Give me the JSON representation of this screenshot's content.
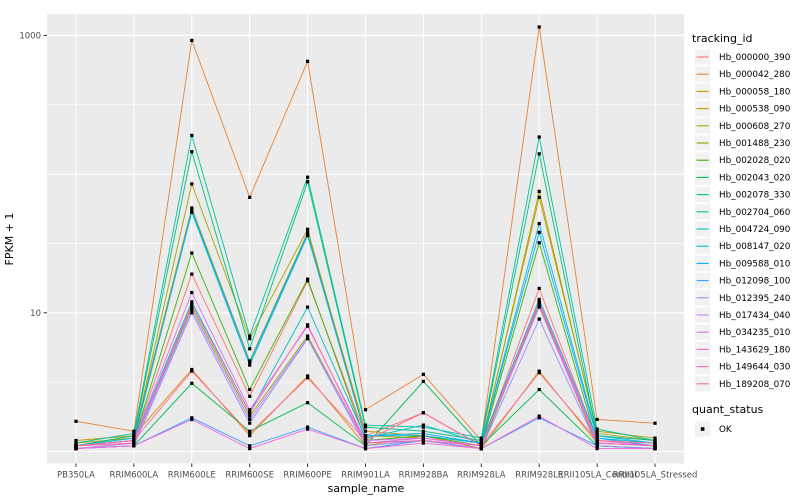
{
  "chart_data": {
    "type": "line",
    "title": "",
    "xlabel": "sample_name",
    "ylabel": "FPKM + 1",
    "y_scale": "log10",
    "y_tick_labels": [
      "1000",
      "10"
    ],
    "y_tick_values": [
      1000,
      10
    ],
    "y_gridlines_major": [
      1,
      10,
      100,
      1000
    ],
    "y_gridlines_minor": [
      3.162,
      31.62,
      316.2
    ],
    "ylim": [
      0.82,
      1400
    ],
    "grid": true,
    "panel_bg": "#EBEBEB",
    "grid_color": "#FFFFFF",
    "point_color": "#000000",
    "axis_text_color": "#4D4D4D",
    "tick_color": "#333333",
    "legend_key_bg": "#F2F2F2",
    "legend_position": "right",
    "categories": [
      "PB350LA",
      "RRIM600LA",
      "RRIM600LE",
      "RRIM600SE",
      "RRIM600PE",
      "RRIM901LA",
      "RRIM928BA",
      "RRIM928LA",
      "RRIM928LE",
      "RRII105LA_Control",
      "RRII105LA_Stressed"
    ],
    "series": [
      {
        "name": "Hb_000000_390",
        "color": "#F8766D",
        "values": [
          1.1,
          1.2,
          19,
          2.5,
          17,
          1.3,
          1.9,
          1.1,
          15,
          1.2,
          1.1
        ]
      },
      {
        "name": "Hb_000042_280",
        "color": "#EA8331",
        "values": [
          1.65,
          1.4,
          920,
          68,
          650,
          2.0,
          3.6,
          1.2,
          1150,
          1.7,
          1.6
        ]
      },
      {
        "name": "Hb_000058_180",
        "color": "#D89000",
        "values": [
          1.1,
          1.3,
          3.9,
          1.3,
          3.5,
          1.1,
          1.3,
          1.05,
          3.8,
          1.15,
          1.1
        ]
      },
      {
        "name": "Hb_000538_090",
        "color": "#C09B00",
        "values": [
          1.2,
          1.3,
          57,
          4.5,
          38,
          1.4,
          1.3,
          1.15,
          68,
          1.4,
          1.25
        ]
      },
      {
        "name": "Hb_000608_270",
        "color": "#A3A500",
        "values": [
          1.15,
          1.25,
          85,
          6.5,
          40,
          1.3,
          1.25,
          1.1,
          75,
          1.35,
          1.2
        ]
      },
      {
        "name": "Hb_001488_230",
        "color": "#7CAE00",
        "values": [
          1.05,
          1.15,
          11,
          1.8,
          6.8,
          1.15,
          1.2,
          1.05,
          11.5,
          1.1,
          1.05
        ]
      },
      {
        "name": "Hb_002028_020",
        "color": "#39B600",
        "values": [
          1.1,
          1.2,
          27,
          2.8,
          17.5,
          1.2,
          1.3,
          1.1,
          32,
          1.15,
          1.1
        ]
      },
      {
        "name": "Hb_002043_020",
        "color": "#00BB4E",
        "values": [
          1.05,
          1.1,
          3.1,
          1.4,
          2.25,
          1.1,
          3.2,
          1.1,
          2.8,
          1.1,
          1.05
        ]
      },
      {
        "name": "Hb_002078_330",
        "color": "#00BF7D",
        "values": [
          1.1,
          1.3,
          145,
          5.5,
          88,
          1.5,
          1.4,
          1.2,
          140,
          1.3,
          1.2
        ]
      },
      {
        "name": "Hb_002704_060",
        "color": "#00C1A3",
        "values": [
          1.15,
          1.35,
          190,
          6.8,
          95,
          1.55,
          1.5,
          1.25,
          185,
          1.45,
          1.2
        ]
      },
      {
        "name": "Hb_004724_090",
        "color": "#00BFC4",
        "values": [
          1.1,
          1.2,
          12,
          1.9,
          11,
          1.25,
          1.55,
          1.15,
          12.5,
          1.25,
          1.15
        ]
      },
      {
        "name": "Hb_008147_020",
        "color": "#00BAE0",
        "values": [
          1.1,
          1.25,
          53,
          4.2,
          36,
          1.3,
          1.3,
          1.15,
          44,
          1.3,
          1.15
        ]
      },
      {
        "name": "Hb_009588_010",
        "color": "#00B0F6",
        "values": [
          1.1,
          1.2,
          55,
          4.4,
          37,
          1.3,
          1.35,
          1.15,
          38,
          1.25,
          1.1
        ]
      },
      {
        "name": "Hb_012098_100",
        "color": "#35A2FF",
        "values": [
          1.05,
          1.1,
          1.75,
          1.1,
          1.5,
          1.05,
          1.2,
          1.05,
          1.75,
          1.1,
          1.05
        ]
      },
      {
        "name": "Hb_012395_240",
        "color": "#9590FF",
        "values": [
          1.05,
          1.1,
          10,
          1.6,
          6.5,
          1.1,
          1.2,
          1.05,
          9,
          1.1,
          1.05
        ]
      },
      {
        "name": "Hb_017434_040",
        "color": "#C77CFF",
        "values": [
          1.05,
          1.15,
          10.5,
          1.7,
          6.6,
          1.15,
          1.25,
          1.1,
          11,
          1.15,
          1.1
        ]
      },
      {
        "name": "Hb_034235_010",
        "color": "#E76BF3",
        "values": [
          1.1,
          1.2,
          14,
          2.0,
          8,
          1.2,
          1.25,
          1.1,
          12,
          1.2,
          1.1
        ]
      },
      {
        "name": "Hb_143629_180",
        "color": "#FA62DB",
        "values": [
          1.05,
          1.1,
          1.7,
          1.05,
          1.45,
          1.05,
          1.15,
          1.05,
          1.8,
          1.05,
          1.05
        ]
      },
      {
        "name": "Hb_149644_030",
        "color": "#FF62BC",
        "values": [
          1.1,
          1.15,
          11.5,
          1.9,
          8.2,
          1.15,
          1.2,
          1.1,
          11.8,
          1.15,
          1.1
        ]
      },
      {
        "name": "Hb_189208_070",
        "color": "#FF6A98",
        "values": [
          1.1,
          1.2,
          3.8,
          1.35,
          3.4,
          1.2,
          1.9,
          1.1,
          3.7,
          1.2,
          1.15
        ]
      }
    ],
    "legend": {
      "color_title": "tracking_id",
      "shape_title": "quant_status",
      "shape_entries": [
        {
          "label": "OK",
          "marker": "black-square"
        }
      ]
    }
  }
}
